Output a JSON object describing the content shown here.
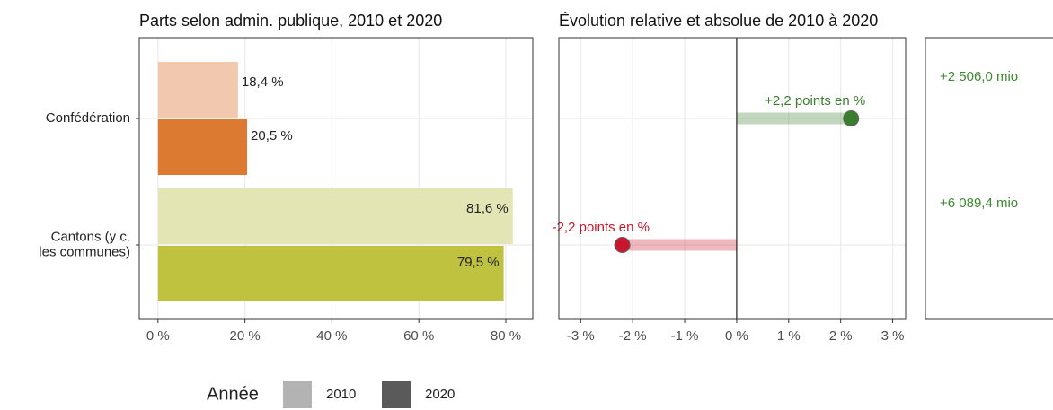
{
  "chart_data": [
    {
      "type": "hbar",
      "title": "Parts selon admin. publique, 2010 et 2020",
      "categories": [
        "Confédération",
        "Cantons (y c.\nles communes)"
      ],
      "series": [
        {
          "name": "2010",
          "color": "#b3b3b3",
          "bar_colors": [
            "#f2c9ae",
            "#e3e6b4"
          ],
          "values": [
            18.4,
            81.6
          ],
          "value_labels": [
            "18,4 %",
            "81,6 %"
          ]
        },
        {
          "name": "2020",
          "color": "#5a5a5a",
          "bar_colors": [
            "#dd7a31",
            "#bec23e"
          ],
          "values": [
            20.5,
            79.5
          ],
          "value_labels": [
            "20,5 %",
            "79,5 %"
          ]
        }
      ],
      "xlim": [
        -4.3,
        86.2
      ],
      "xticks": [
        {
          "value": 0,
          "label": "0 %"
        },
        {
          "value": 20,
          "label": "20 %"
        },
        {
          "value": 40,
          "label": "40 %"
        },
        {
          "value": 60,
          "label": "60 %"
        },
        {
          "value": 80,
          "label": "80 %"
        }
      ],
      "grid": true,
      "legend_title": "Année",
      "legend": "bottom"
    },
    {
      "type": "lollipop",
      "title": "Évolution relative et absolue de 2010 à 2020",
      "values": [
        2.2,
        -2.2
      ],
      "value_labels": [
        "+2,2 points en %",
        "-2,2 points en %"
      ],
      "colors": [
        "#3b7d2f",
        "#c8172c"
      ],
      "xlim": [
        -3.42,
        3.25
      ],
      "xticks": [
        {
          "value": -3,
          "label": "-3 %"
        },
        {
          "value": -2,
          "label": "-2 %"
        },
        {
          "value": -1,
          "label": "-1 %"
        },
        {
          "value": 0,
          "label": "0 %"
        },
        {
          "value": 1,
          "label": "1 %"
        },
        {
          "value": 2,
          "label": "2 %"
        },
        {
          "value": 3,
          "label": "3 %"
        }
      ],
      "grid": true
    },
    {
      "type": "text",
      "values": [
        2506.0,
        6089.4
      ],
      "value_labels": [
        "+2 506,0 mio",
        "+6 089,4 mio"
      ],
      "colors": [
        "#3b8a2f",
        "#3b8a2f"
      ]
    }
  ]
}
